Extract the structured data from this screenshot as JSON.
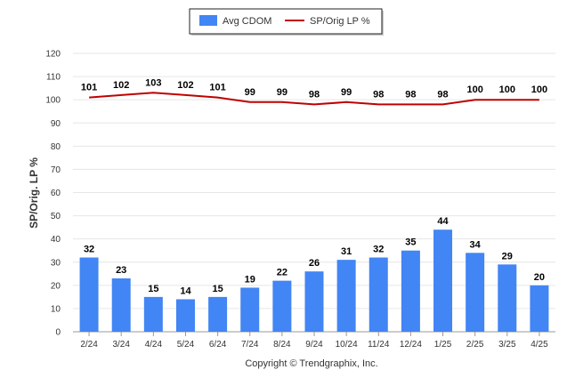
{
  "chart_data": {
    "type": "bar",
    "categories": [
      "2/24",
      "3/24",
      "4/24",
      "5/24",
      "6/24",
      "7/24",
      "8/24",
      "9/24",
      "10/24",
      "11/24",
      "12/24",
      "1/25",
      "2/25",
      "3/25",
      "4/25"
    ],
    "series": [
      {
        "name": "Avg CDOM",
        "type": "bar",
        "color": "#4285F4",
        "values": [
          32,
          23,
          15,
          14,
          15,
          19,
          22,
          26,
          31,
          32,
          35,
          44,
          34,
          29,
          20
        ]
      },
      {
        "name": "SP/Orig LP %",
        "type": "line",
        "color": "#C00000",
        "values": [
          101,
          102,
          103,
          102,
          101,
          99,
          99,
          98,
          99,
          98,
          98,
          98,
          100,
          100,
          100
        ]
      }
    ],
    "xlabel": "",
    "ylabel": "SP/Orig. LP %",
    "ylim": [
      0,
      120
    ],
    "yticks": [
      0,
      10,
      20,
      30,
      40,
      50,
      60,
      70,
      80,
      90,
      100,
      110,
      120
    ],
    "grid": true,
    "legend": "top-center"
  },
  "copyright": "Copyright © Trendgraphix, Inc."
}
